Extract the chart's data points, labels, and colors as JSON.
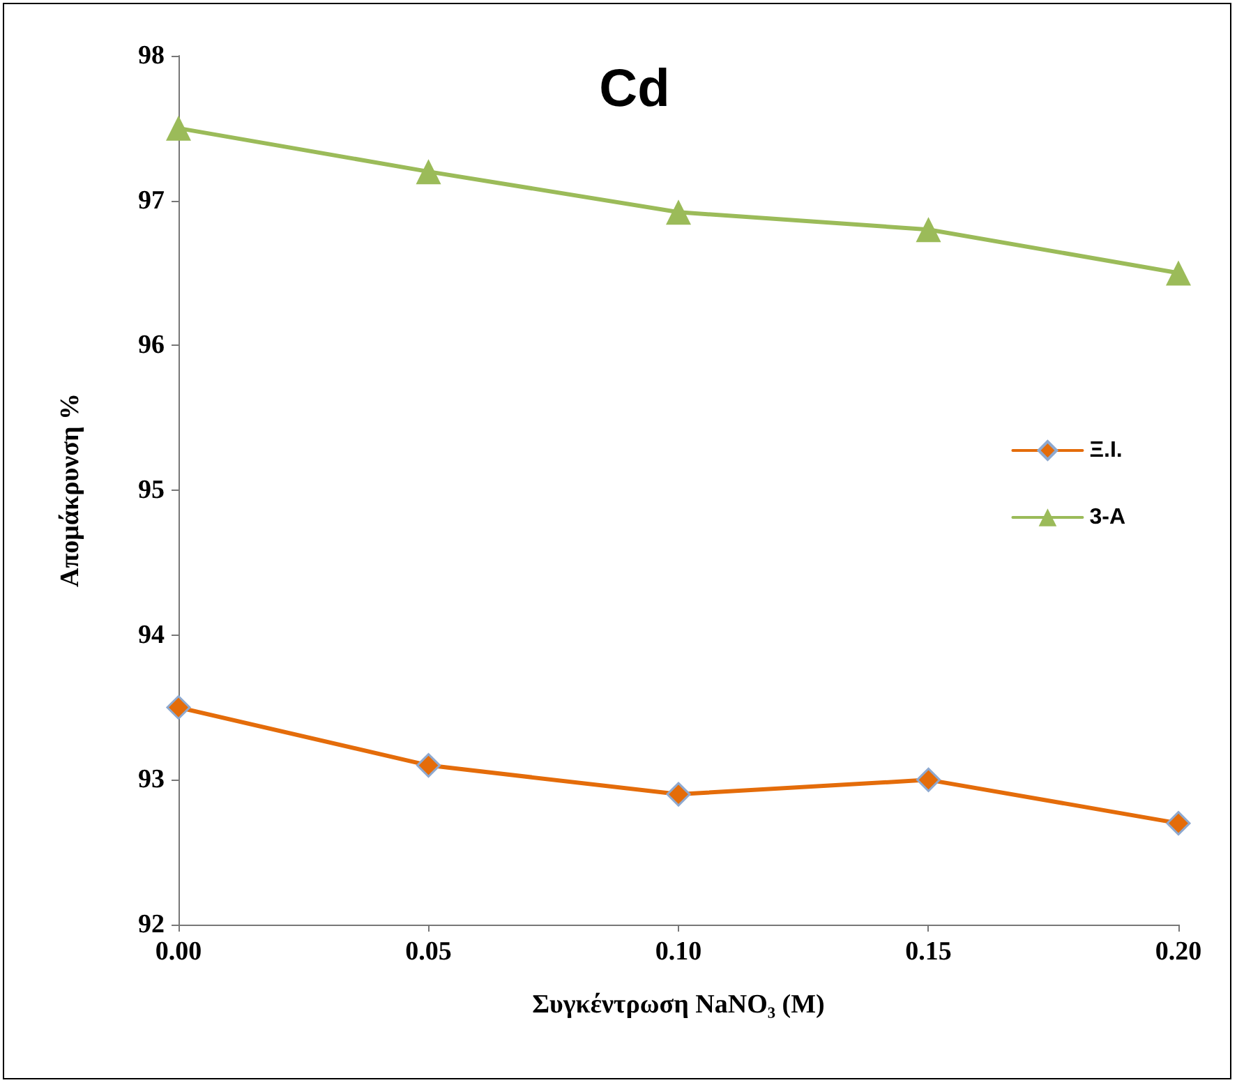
{
  "chart_data": {
    "type": "line",
    "title": "Cd",
    "xlabel": "Συγκέντρωση NaNO₃ (M)",
    "ylabel": "Απομάκρυνση %",
    "x": [
      0,
      0.05,
      0.1,
      0.15,
      0.2
    ],
    "series": [
      {
        "name": "Ξ.Ι.",
        "color": "#e46c0a",
        "marker": "diamond",
        "values": [
          93.5,
          93.1,
          92.9,
          93.0,
          92.7
        ]
      },
      {
        "name": "3-A",
        "color": "#9bbb59",
        "marker": "triangle",
        "values": [
          97.5,
          97.2,
          96.92,
          96.8,
          96.5
        ]
      }
    ],
    "xlim": [
      0,
      0.2
    ],
    "xticks": [
      {
        "value": 0,
        "label": "0.00"
      },
      {
        "value": 0.05,
        "label": "0.05"
      },
      {
        "value": 0.1,
        "label": "0.10"
      },
      {
        "value": 0.15,
        "label": "0.15"
      },
      {
        "value": 0.2,
        "label": "0.20"
      }
    ],
    "ylim": [
      92,
      98
    ],
    "yticks": [
      92,
      93,
      94,
      95,
      96,
      97,
      98
    ],
    "grid": false,
    "legend": "right",
    "line_style": "solid"
  }
}
